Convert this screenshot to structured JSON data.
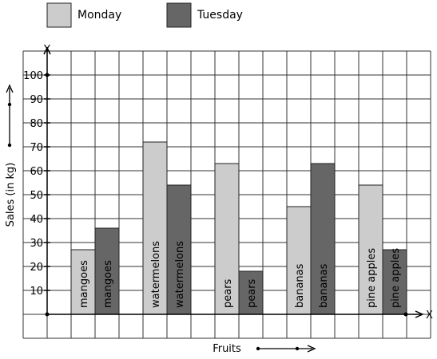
{
  "chart_data": {
    "type": "bar",
    "xlabel": "Fruits",
    "ylabel": "Sales (in kg)",
    "x_axis_letter": "X",
    "y_axis_letter": "Y",
    "categories": [
      "mangoes",
      "watermelons",
      "pears",
      "bananas",
      "pine apples"
    ],
    "series": [
      {
        "name": "Monday",
        "values": [
          27,
          72,
          63,
          45,
          54
        ],
        "color": "#cccccc"
      },
      {
        "name": "Tuesday",
        "values": [
          36,
          54,
          18,
          63,
          27
        ],
        "color": "#666666"
      }
    ],
    "yticks": [
      "10",
      "20",
      "30",
      "40",
      "50",
      "60",
      "70",
      "80",
      "90",
      "100"
    ],
    "ylim": [
      0,
      100
    ],
    "grid": true,
    "legend_position": "top-left"
  }
}
